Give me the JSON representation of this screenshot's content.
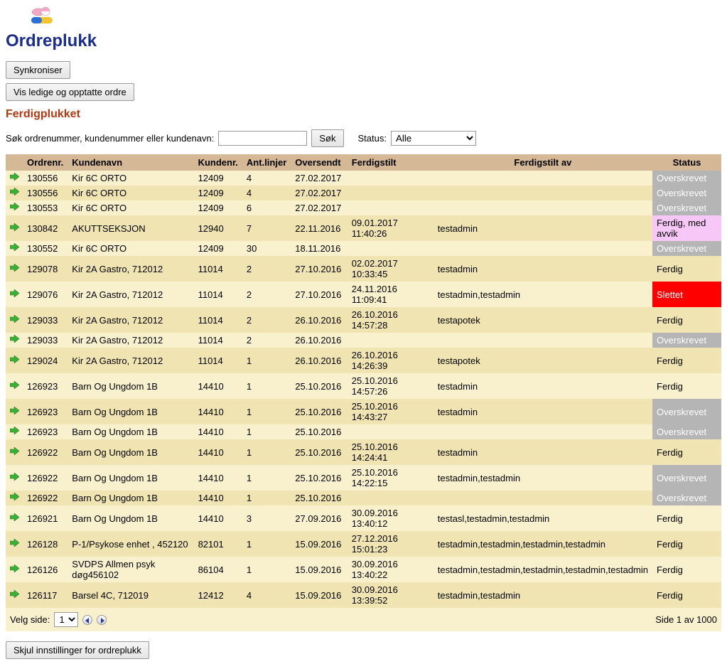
{
  "page": {
    "title": "Ordreplukk",
    "section_title": "Ferdigplukket"
  },
  "buttons": {
    "sync": "Synkroniser",
    "toggle_orders": "Vis ledige og opptatte ordre",
    "search": "Søk",
    "hide_settings": "Skjul innstillinger for ordreplukk"
  },
  "search": {
    "label": "Søk ordrenummer, kundenummer eller kundenavn:",
    "value": "",
    "status_label": "Status:",
    "status_selected": "Alle"
  },
  "columns": {
    "ordrenr": "Ordrenr.",
    "kundenavn": "Kundenavn",
    "kundenr": "Kundenr.",
    "antlinjer": "Ant.linjer",
    "oversendt": "Oversendt",
    "ferdigstilt": "Ferdigstilt",
    "ferdigstilt_av": "Ferdigstilt av",
    "status": "Status"
  },
  "status_styles": {
    "Overskrevet": {
      "bg": "#b5b5b5",
      "fg": "#ffffff"
    },
    "Ferdig, med avvik": {
      "bg": "#f7c7f7",
      "fg": "#000000"
    },
    "Ferdig": {
      "bg": "",
      "fg": "#000000"
    },
    "Slettet": {
      "bg": "#ff0000",
      "fg": "#ffffff"
    }
  },
  "rows": [
    {
      "ordrenr": "130556",
      "kundenavn": "Kir 6C ORTO",
      "kundenr": "12409",
      "antlinjer": "4",
      "oversendt": "27.02.2017",
      "ferdigstilt": "",
      "ferdigstilt_av": "",
      "status": "Overskrevet"
    },
    {
      "ordrenr": "130556",
      "kundenavn": "Kir 6C ORTO",
      "kundenr": "12409",
      "antlinjer": "4",
      "oversendt": "27.02.2017",
      "ferdigstilt": "",
      "ferdigstilt_av": "",
      "status": "Overskrevet"
    },
    {
      "ordrenr": "130553",
      "kundenavn": "Kir 6C ORTO",
      "kundenr": "12409",
      "antlinjer": "6",
      "oversendt": "27.02.2017",
      "ferdigstilt": "",
      "ferdigstilt_av": "",
      "status": "Overskrevet"
    },
    {
      "ordrenr": "130842",
      "kundenavn": "AKUTTSEKSJON",
      "kundenr": "12940",
      "antlinjer": "7",
      "oversendt": "22.11.2016",
      "ferdigstilt": "09.01.2017 11:40:26",
      "ferdigstilt_av": "testadmin",
      "status": "Ferdig, med avvik"
    },
    {
      "ordrenr": "130552",
      "kundenavn": "Kir 6C ORTO",
      "kundenr": "12409",
      "antlinjer": "30",
      "oversendt": "18.11.2016",
      "ferdigstilt": "",
      "ferdigstilt_av": "",
      "status": "Overskrevet"
    },
    {
      "ordrenr": "129078",
      "kundenavn": "Kir 2A Gastro, 712012",
      "kundenr": "11014",
      "antlinjer": "2",
      "oversendt": "27.10.2016",
      "ferdigstilt": "02.02.2017 10:33:45",
      "ferdigstilt_av": "testadmin",
      "status": "Ferdig"
    },
    {
      "ordrenr": "129076",
      "kundenavn": "Kir 2A Gastro, 712012",
      "kundenr": "11014",
      "antlinjer": "2",
      "oversendt": "27.10.2016",
      "ferdigstilt": "24.11.2016 11:09:41",
      "ferdigstilt_av": "testadmin,testadmin",
      "status": "Slettet"
    },
    {
      "ordrenr": "129033",
      "kundenavn": "Kir 2A Gastro, 712012",
      "kundenr": "11014",
      "antlinjer": "2",
      "oversendt": "26.10.2016",
      "ferdigstilt": "26.10.2016 14:57:28",
      "ferdigstilt_av": "testapotek",
      "status": "Ferdig"
    },
    {
      "ordrenr": "129033",
      "kundenavn": "Kir 2A Gastro, 712012",
      "kundenr": "11014",
      "antlinjer": "2",
      "oversendt": "26.10.2016",
      "ferdigstilt": "",
      "ferdigstilt_av": "",
      "status": "Overskrevet"
    },
    {
      "ordrenr": "129024",
      "kundenavn": "Kir 2A Gastro, 712012",
      "kundenr": "11014",
      "antlinjer": "1",
      "oversendt": "26.10.2016",
      "ferdigstilt": "26.10.2016 14:26:39",
      "ferdigstilt_av": "testapotek",
      "status": "Ferdig"
    },
    {
      "ordrenr": "126923",
      "kundenavn": "Barn Og Ungdom 1B",
      "kundenr": "14410",
      "antlinjer": "1",
      "oversendt": "25.10.2016",
      "ferdigstilt": "25.10.2016 14:57:26",
      "ferdigstilt_av": "testadmin",
      "status": "Ferdig"
    },
    {
      "ordrenr": "126923",
      "kundenavn": "Barn Og Ungdom 1B",
      "kundenr": "14410",
      "antlinjer": "1",
      "oversendt": "25.10.2016",
      "ferdigstilt": "25.10.2016 14:43:27",
      "ferdigstilt_av": "testadmin",
      "status": "Overskrevet"
    },
    {
      "ordrenr": "126923",
      "kundenavn": "Barn Og Ungdom 1B",
      "kundenr": "14410",
      "antlinjer": "1",
      "oversendt": "25.10.2016",
      "ferdigstilt": "",
      "ferdigstilt_av": "",
      "status": "Overskrevet"
    },
    {
      "ordrenr": "126922",
      "kundenavn": "Barn Og Ungdom 1B",
      "kundenr": "14410",
      "antlinjer": "1",
      "oversendt": "25.10.2016",
      "ferdigstilt": "25.10.2016 14:24:41",
      "ferdigstilt_av": "testadmin",
      "status": "Ferdig"
    },
    {
      "ordrenr": "126922",
      "kundenavn": "Barn Og Ungdom 1B",
      "kundenr": "14410",
      "antlinjer": "1",
      "oversendt": "25.10.2016",
      "ferdigstilt": "25.10.2016 14:22:15",
      "ferdigstilt_av": "testadmin,testadmin",
      "status": "Overskrevet"
    },
    {
      "ordrenr": "126922",
      "kundenavn": "Barn Og Ungdom 1B",
      "kundenr": "14410",
      "antlinjer": "1",
      "oversendt": "25.10.2016",
      "ferdigstilt": "",
      "ferdigstilt_av": "",
      "status": "Overskrevet"
    },
    {
      "ordrenr": "126921",
      "kundenavn": "Barn Og Ungdom 1B",
      "kundenr": "14410",
      "antlinjer": "3",
      "oversendt": "27.09.2016",
      "ferdigstilt": "30.09.2016 13:40:12",
      "ferdigstilt_av": "testasl,testadmin,testadmin",
      "status": "Ferdig"
    },
    {
      "ordrenr": "126128",
      "kundenavn": "P-1/Psykose enhet , 452120",
      "kundenr": "82101",
      "antlinjer": "1",
      "oversendt": "15.09.2016",
      "ferdigstilt": "27.12.2016 15:01:23",
      "ferdigstilt_av": "testadmin,testadmin,testadmin,testadmin",
      "status": "Ferdig"
    },
    {
      "ordrenr": "126126",
      "kundenavn": "SVDPS Allmen psyk døg456102",
      "kundenr": "86104",
      "antlinjer": "1",
      "oversendt": "15.09.2016",
      "ferdigstilt": "30.09.2016 13:40:22",
      "ferdigstilt_av": "testadmin,testadmin,testadmin,testadmin,testadmin",
      "status": "Ferdig"
    },
    {
      "ordrenr": "126117",
      "kundenavn": "Barsel 4C, 712019",
      "kundenr": "12412",
      "antlinjer": "4",
      "oversendt": "15.09.2016",
      "ferdigstilt": "30.09.2016 13:39:52",
      "ferdigstilt_av": "testadmin,testadmin",
      "status": "Ferdig"
    }
  ],
  "pager": {
    "label": "Velg side:",
    "selected": "1",
    "info": "Side 1 av 1000"
  },
  "colors": {
    "header_bg": "#d5b895",
    "row_even": "#f9f1ce",
    "row_odd": "#f0e4b2",
    "title": "#1a2d8b",
    "section": "#b23812",
    "arrow": "#3cb034"
  }
}
